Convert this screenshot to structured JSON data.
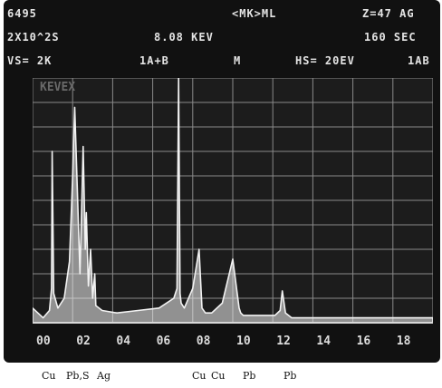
{
  "header": {
    "row1": {
      "id": "6495",
      "mode": "<MK>ML",
      "z": "Z=47 AG"
    },
    "row2": {
      "scale": "2X10^2S",
      "energy": "8.08 KEV",
      "time": "160 SEC"
    },
    "row3": {
      "vs": "VS= 2K",
      "disp": "1A+B",
      "m": "M",
      "hs": "HS= 20EV",
      "ab": "1AB"
    }
  },
  "brand": "KEVEX",
  "element_labels": [
    "Cu",
    "Pb,S",
    "Ag",
    "Cu",
    "Cu",
    "Pb",
    "Pb"
  ],
  "colors": {
    "trace": "#f2f2f2",
    "grid": "#8a8a8a",
    "screen": "#111111"
  },
  "chart_data": {
    "type": "line",
    "title": "",
    "xlabel": "",
    "ylabel": "",
    "xlim": [
      0,
      19
    ],
    "ylim": [
      0,
      1
    ],
    "xticks": [
      "00",
      "02",
      "04",
      "06",
      "08",
      "10",
      "12",
      "14",
      "16",
      "18"
    ],
    "series": [
      {
        "x": [
          0.0,
          0.5,
          0.8,
          0.9,
          0.93,
          1.0,
          1.2,
          1.5,
          1.75,
          1.9,
          2.0,
          2.1,
          2.25,
          2.35,
          2.4,
          2.5,
          2.55,
          2.65,
          2.75,
          2.85,
          2.95,
          3.0,
          3.3,
          4.0,
          5.0,
          6.0,
          6.7,
          6.85,
          6.93,
          7.0,
          7.05,
          7.2,
          7.6,
          7.9,
          8.04,
          8.2,
          8.5,
          9.0,
          9.5,
          9.8,
          9.88,
          10.0,
          10.3,
          11.0,
          11.5,
          11.75,
          11.85,
          12.0,
          12.3,
          13.0,
          14.0,
          16.0,
          19.0
        ],
        "y": [
          0.06,
          0.02,
          0.05,
          0.14,
          0.7,
          0.12,
          0.06,
          0.1,
          0.25,
          0.6,
          0.88,
          0.6,
          0.2,
          0.55,
          0.72,
          0.3,
          0.45,
          0.15,
          0.3,
          0.1,
          0.2,
          0.07,
          0.05,
          0.04,
          0.05,
          0.06,
          0.1,
          0.14,
          1.0,
          0.12,
          0.08,
          0.06,
          0.14,
          0.3,
          0.06,
          0.04,
          0.04,
          0.08,
          0.26,
          0.06,
          0.04,
          0.03,
          0.03,
          0.03,
          0.03,
          0.05,
          0.13,
          0.04,
          0.02,
          0.02,
          0.02,
          0.02,
          0.02
        ]
      }
    ]
  }
}
